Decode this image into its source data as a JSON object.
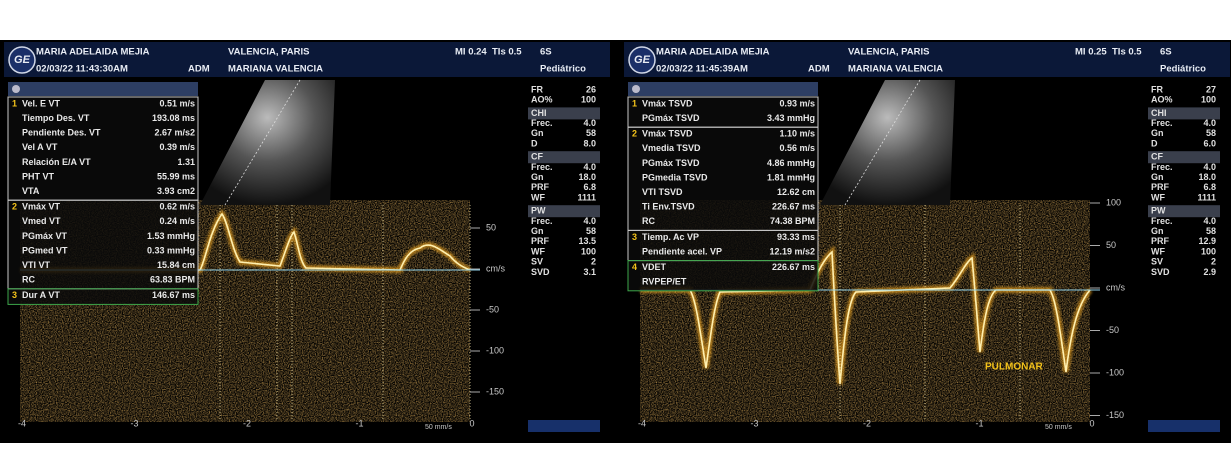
{
  "panels": [
    {
      "header": {
        "logo": "GE",
        "patient": "MARIA ADELAIDA MEJIA",
        "datetime": "02/03/22 11:43:30AM",
        "tag": "ADM",
        "institution": "VALENCIA, PARIS",
        "operator": "MARIANA VALENCIA",
        "mi": "MI 0.24",
        "tis": "TIs 0.5",
        "probe": "6S",
        "preset": "Pediátrico"
      },
      "measurements": [
        {
          "index": "1",
          "rows": [
            {
              "label": "Vel. E VT",
              "value": "0.51 m/s"
            },
            {
              "label": "Tiempo Des. VT",
              "value": "193.08 ms"
            },
            {
              "label": "Pendiente Des. VT",
              "value": "2.67 m/s2"
            },
            {
              "label": "Vel A VT",
              "value": "0.39 m/s"
            },
            {
              "label": "Relación E/A VT",
              "value": "1.31"
            },
            {
              "label": "PHT VT",
              "value": "55.99 ms"
            },
            {
              "label": "VTA",
              "value": "3.93 cm2"
            }
          ]
        },
        {
          "index": "2",
          "rows": [
            {
              "label": "Vmáx VT",
              "value": "0.62 m/s"
            },
            {
              "label": "Vmed VT",
              "value": "0.24 m/s"
            },
            {
              "label": "PGmáx VT",
              "value": "1.53 mmHg"
            },
            {
              "label": "PGmed VT",
              "value": "0.33 mmHg"
            },
            {
              "label": "VTI VT",
              "value": "15.84 cm"
            },
            {
              "label": "RC",
              "value": "63.83 BPM"
            }
          ]
        },
        {
          "index": "3",
          "rows": [
            {
              "label": "Dur A VT",
              "value": "146.67 ms"
            }
          ]
        }
      ],
      "params": [
        {
          "label": "FR",
          "value": "26"
        },
        {
          "label": "AO%",
          "value": "100"
        },
        {
          "label": "CHI"
        },
        {
          "label": "Frec.",
          "value": "4.0"
        },
        {
          "label": "Gn",
          "value": "58"
        },
        {
          "label": "D",
          "value": "8.0"
        },
        {
          "label": "CF"
        },
        {
          "label": "Frec.",
          "value": "4.0"
        },
        {
          "label": "Gn",
          "value": "18.0"
        },
        {
          "label": "PRF",
          "value": "6.8"
        },
        {
          "label": "WF",
          "value": "1111"
        },
        {
          "label": "PW"
        },
        {
          "label": "Frec.",
          "value": "4.0"
        },
        {
          "label": "Gn",
          "value": "58"
        },
        {
          "label": "PRF",
          "value": "13.5"
        },
        {
          "label": "WF",
          "value": "100"
        },
        {
          "label": "SV",
          "value": "2"
        },
        {
          "label": "SVD",
          "value": "3.1"
        }
      ],
      "velocity_scale": [
        "50",
        "cm/s",
        "-50",
        "-100",
        "-150"
      ],
      "time_scale": [
        "-4",
        "-3",
        "-2",
        "-1",
        "0"
      ],
      "sweep": "50 mm/s"
    },
    {
      "header": {
        "logo": "GE",
        "patient": "MARIA ADELAIDA MEJIA",
        "datetime": "02/03/22 11:45:39AM",
        "tag": "ADM",
        "institution": "VALENCIA, PARIS",
        "operator": "MARIANA VALENCIA",
        "mi": "MI 0.25",
        "tis": "TIs 0.5",
        "probe": "6S",
        "preset": "Pediátrico"
      },
      "measurements": [
        {
          "index": "1",
          "rows": [
            {
              "label": "Vmáx TSVD",
              "value": "0.93 m/s"
            },
            {
              "label": "PGmáx TSVD",
              "value": "3.43 mmHg"
            }
          ]
        },
        {
          "index": "2",
          "rows": [
            {
              "label": "Vmáx TSVD",
              "value": "1.10 m/s"
            },
            {
              "label": "Vmedia TSVD",
              "value": "0.56 m/s"
            },
            {
              "label": "PGmáx TSVD",
              "value": "4.86 mmHg"
            },
            {
              "label": "PGmedia TSVD",
              "value": "1.81 mmHg"
            },
            {
              "label": "VTI TSVD",
              "value": "12.62 cm"
            },
            {
              "label": "Ti Env.TSVD",
              "value": "226.67 ms"
            },
            {
              "label": "RC",
              "value": "74.38 BPM"
            }
          ]
        },
        {
          "index": "3",
          "rows": [
            {
              "label": "Tiemp. Ac VP",
              "value": "93.33 ms"
            },
            {
              "label": "Pendiente acel. VP",
              "value": "12.19 m/s2"
            }
          ]
        },
        {
          "index": "4",
          "rows": [
            {
              "label": "VDET",
              "value": "226.67 ms"
            },
            {
              "label": "RVPEP/ET"
            }
          ]
        }
      ],
      "params": [
        {
          "label": "FR",
          "value": "27"
        },
        {
          "label": "AO%",
          "value": "100"
        },
        {
          "label": "CHI"
        },
        {
          "label": "Frec.",
          "value": "4.0"
        },
        {
          "label": "Gn",
          "value": "58"
        },
        {
          "label": "D",
          "value": "6.0"
        },
        {
          "label": "CF"
        },
        {
          "label": "Frec.",
          "value": "4.0"
        },
        {
          "label": "Gn",
          "value": "18.0"
        },
        {
          "label": "PRF",
          "value": "6.8"
        },
        {
          "label": "WF",
          "value": "1111"
        },
        {
          "label": "PW"
        },
        {
          "label": "Frec.",
          "value": "4.0"
        },
        {
          "label": "Gn",
          "value": "58"
        },
        {
          "label": "PRF",
          "value": "12.9"
        },
        {
          "label": "WF",
          "value": "100"
        },
        {
          "label": "SV",
          "value": "2"
        },
        {
          "label": "SVD",
          "value": "2.9"
        }
      ],
      "velocity_scale": [
        "100",
        "50",
        "cm/s",
        "-50",
        "-100",
        "-150"
      ],
      "time_scale": [
        "-4",
        "-3",
        "-2",
        "-1",
        "0"
      ],
      "sweep": "50 mm/s",
      "annotation": "PULMONAR"
    }
  ]
}
